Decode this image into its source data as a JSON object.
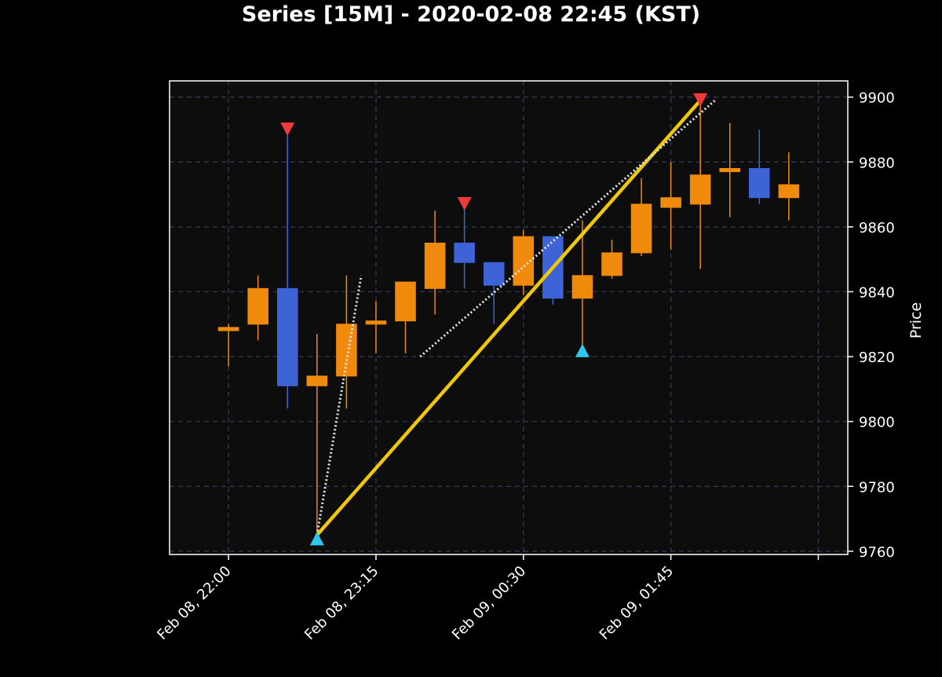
{
  "chart_data": {
    "type": "candlestick",
    "title": "Series [15M] - 2020-02-08 22:45 (KST)",
    "xlabel": "",
    "ylabel": "Price",
    "ylim": [
      9759,
      9905
    ],
    "yticks": [
      9760,
      9780,
      9800,
      9820,
      9840,
      9860,
      9880,
      9900
    ],
    "xticks": [
      {
        "x": 0,
        "label": "Feb 08, 22:00"
      },
      {
        "x": 5,
        "label": "Feb 08, 23:15"
      },
      {
        "x": 10,
        "label": "Feb 09, 00:30"
      },
      {
        "x": 15,
        "label": "Feb 09, 01:45"
      },
      {
        "x": 20,
        "label": ""
      }
    ],
    "xlim": [
      -2,
      21
    ],
    "grid": true,
    "candles": [
      {
        "x": 0,
        "open": 9828,
        "high": 9830,
        "low": 9817,
        "close": 9829
      },
      {
        "x": 1,
        "open": 9830,
        "high": 9845,
        "low": 9825,
        "close": 9841
      },
      {
        "x": 2,
        "open": 9841,
        "high": 9889,
        "low": 9804,
        "close": 9811
      },
      {
        "x": 3,
        "open": 9811,
        "high": 9827,
        "low": 9765,
        "close": 9814
      },
      {
        "x": 4,
        "open": 9814,
        "high": 9845,
        "low": 9804,
        "close": 9830
      },
      {
        "x": 5,
        "open": 9830,
        "high": 9837,
        "low": 9821,
        "close": 9831
      },
      {
        "x": 6,
        "open": 9831,
        "high": 9843,
        "low": 9821,
        "close": 9843
      },
      {
        "x": 7,
        "open": 9841,
        "high": 9865,
        "low": 9833,
        "close": 9855
      },
      {
        "x": 8,
        "open": 9855,
        "high": 9866,
        "low": 9841,
        "close": 9849
      },
      {
        "x": 9,
        "open": 9849,
        "high": 9849,
        "low": 9830,
        "close": 9842
      },
      {
        "x": 10,
        "open": 9842,
        "high": 9859,
        "low": 9839,
        "close": 9857
      },
      {
        "x": 11,
        "open": 9857,
        "high": 9857,
        "low": 9836,
        "close": 9838
      },
      {
        "x": 12,
        "open": 9838,
        "high": 9862,
        "low": 9822,
        "close": 9845
      },
      {
        "x": 13,
        "open": 9845,
        "high": 9856,
        "low": 9844,
        "close": 9852
      },
      {
        "x": 14,
        "open": 9852,
        "high": 9875,
        "low": 9851,
        "close": 9867
      },
      {
        "x": 15,
        "open": 9866,
        "high": 9880,
        "low": 9853,
        "close": 9869
      },
      {
        "x": 16,
        "open": 9867,
        "high": 9898,
        "low": 9847,
        "close": 9876
      },
      {
        "x": 17,
        "open": 9877,
        "high": 9892,
        "low": 9863,
        "close": 9878
      },
      {
        "x": 18,
        "open": 9878,
        "high": 9890,
        "low": 9867,
        "close": 9869
      },
      {
        "x": 19,
        "open": 9869,
        "high": 9883,
        "low": 9862,
        "close": 9873
      }
    ],
    "markers": [
      {
        "x": 2,
        "y": 9890,
        "shape": "triangle-down"
      },
      {
        "x": 3,
        "y": 9764,
        "shape": "triangle-up"
      },
      {
        "x": 8,
        "y": 9867,
        "shape": "triangle-down"
      },
      {
        "x": 12,
        "y": 9822,
        "shape": "triangle-up"
      },
      {
        "x": 16,
        "y": 9899,
        "shape": "triangle-down"
      }
    ],
    "lines": [
      {
        "style": "solid",
        "points": [
          {
            "x": 3,
            "y": 9765
          },
          {
            "x": 16,
            "y": 9899
          }
        ]
      },
      {
        "style": "dotted",
        "points": [
          {
            "x": 3,
            "y": 9765
          },
          {
            "x": 4.5,
            "y": 9845
          }
        ]
      },
      {
        "style": "dotted",
        "points": [
          {
            "x": 6.5,
            "y": 9820
          },
          {
            "x": 16.5,
            "y": 9899
          }
        ]
      }
    ],
    "colors": {
      "background": "#000000",
      "plot_background": "#0d0d0d",
      "up": "#f08a0c",
      "down": "#3d63d6",
      "marker_top": "#f03a3a",
      "marker_bottom": "#2ec8ee",
      "trend_line": "#f0c808",
      "dotted_line": "#e6e6e6",
      "grid": "#3a3a55",
      "frame": "#ffffff",
      "text": "#ffffff"
    }
  }
}
